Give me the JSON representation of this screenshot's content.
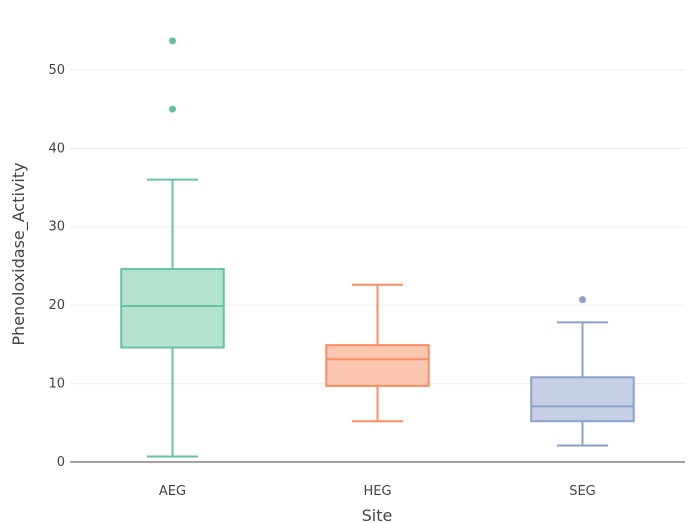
{
  "chart_data": {
    "type": "box",
    "title": "",
    "xlabel": "Site",
    "ylabel": "Phenoloxidase_Activity",
    "ylim": [
      0,
      57
    ],
    "yticks": [
      0,
      10,
      20,
      30,
      40,
      50
    ],
    "grid": true,
    "categories": [
      "AEG",
      "HEG",
      "SEG"
    ],
    "series": [
      {
        "name": "AEG",
        "color": "#66c2a5",
        "fill": "#b3e2cd",
        "min": 0.7,
        "q1": 14.6,
        "median": 19.9,
        "q3": 24.6,
        "max": 36.0,
        "outliers": [
          45.0,
          53.7
        ]
      },
      {
        "name": "HEG",
        "color": "#fc8d62",
        "fill": "#fdc6b0",
        "min": 5.2,
        "q1": 9.7,
        "median": 13.1,
        "q3": 14.9,
        "max": 22.6,
        "outliers": []
      },
      {
        "name": "SEG",
        "color": "#8da0cb",
        "fill": "#c6cfe5",
        "min": 2.1,
        "q1": 5.2,
        "median": 7.1,
        "q3": 10.8,
        "max": 17.8,
        "outliers": [
          20.7
        ]
      }
    ]
  }
}
